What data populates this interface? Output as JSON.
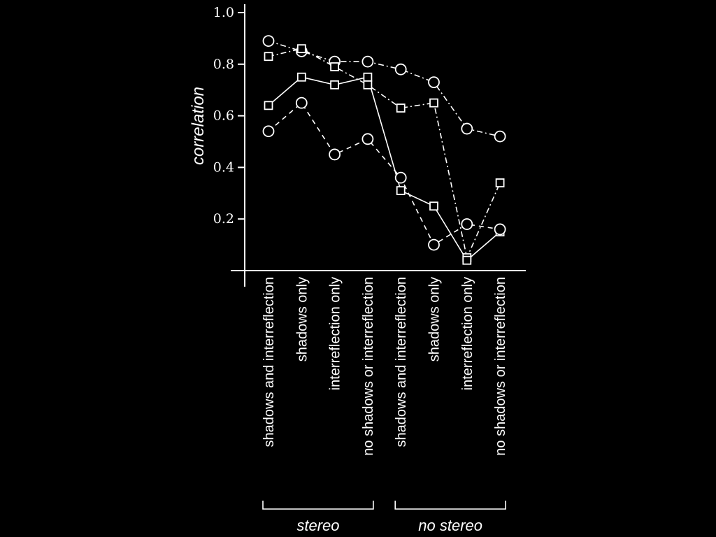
{
  "chart_data": {
    "type": "line",
    "ylabel": "correlation",
    "ylim": [
      0,
      1.0
    ],
    "yticks": [
      0.2,
      0.4,
      0.6,
      0.8,
      1.0
    ],
    "yticklabels": [
      "0.2",
      "0.4",
      "0.6",
      "0.8",
      "1.0"
    ],
    "categories": [
      "shadows and interreflection",
      "shadows only",
      "interreflection only",
      "no shadows or interreflection",
      "shadows and interreflection",
      "shadows only",
      "interreflection only",
      "no shadows or interreflection"
    ],
    "groups": [
      {
        "label": "stereo",
        "start": 0,
        "end": 3
      },
      {
        "label": "no stereo",
        "start": 4,
        "end": 7
      }
    ],
    "series": [
      {
        "marker": "circle",
        "line_style": "dashdot",
        "values": [
          0.89,
          0.85,
          0.81,
          0.81,
          0.78,
          0.73,
          0.55,
          0.52
        ]
      },
      {
        "marker": "square",
        "line_style": "dashdot",
        "values": [
          0.83,
          0.86,
          0.79,
          0.72,
          0.63,
          0.65,
          0.05,
          0.34
        ]
      },
      {
        "marker": "square",
        "line_style": "solid",
        "values": [
          0.64,
          0.75,
          0.72,
          0.75,
          0.31,
          0.25,
          0.04,
          0.15
        ]
      },
      {
        "marker": "circle",
        "line_style": "dashed",
        "values": [
          0.54,
          0.65,
          0.45,
          0.51,
          0.36,
          0.1,
          0.18,
          0.16
        ]
      }
    ]
  }
}
